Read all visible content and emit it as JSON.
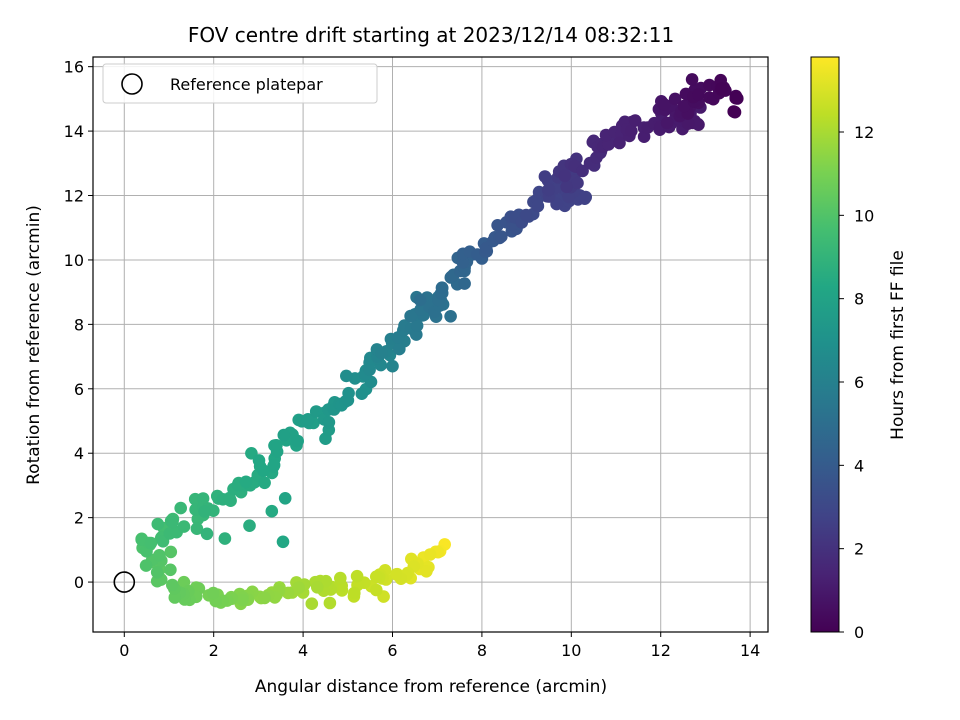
{
  "chart_data": {
    "type": "scatter",
    "title": "FOV centre drift starting at 2023/12/14 08:32:11",
    "xlabel": "Angular distance from reference (arcmin)",
    "ylabel": "Rotation from reference (arcmin)",
    "xlim": [
      -0.7,
      14.4
    ],
    "ylim": [
      -1.55,
      16.3
    ],
    "xticks": [
      0,
      2,
      4,
      6,
      8,
      10,
      12,
      14
    ],
    "yticks": [
      0,
      2,
      4,
      6,
      8,
      10,
      12,
      14,
      16
    ],
    "grid": true,
    "legend": {
      "placement": "top-left",
      "entries": [
        "Reference platepar"
      ]
    },
    "reference_point": {
      "x": 0,
      "y": 0,
      "label": "Reference platepar"
    },
    "colorbar": {
      "label": "Hours from first FF file",
      "colormap": "viridis",
      "range": [
        0,
        13.8
      ],
      "ticks": [
        0,
        2,
        4,
        6,
        8,
        10,
        12
      ]
    },
    "series": [
      {
        "columns": [
          "x",
          "y",
          "hours"
        ],
        "points": [
          [
            13.7,
            14.75,
            0.0
          ],
          [
            13.6,
            15.3,
            0.1
          ],
          [
            13.4,
            15.35,
            0.2
          ],
          [
            13.0,
            15.2,
            0.3
          ],
          [
            12.7,
            15.15,
            0.4
          ],
          [
            12.85,
            14.85,
            0.5
          ],
          [
            12.6,
            14.9,
            0.6
          ],
          [
            12.4,
            14.7,
            0.7
          ],
          [
            12.1,
            14.85,
            0.8
          ],
          [
            12.3,
            14.5,
            0.9
          ],
          [
            12.9,
            14.4,
            1.0
          ],
          [
            11.8,
            14.25,
            1.1
          ],
          [
            11.6,
            14.1,
            1.2
          ],
          [
            11.3,
            14.2,
            1.3
          ],
          [
            11.0,
            13.9,
            1.4
          ],
          [
            10.75,
            13.75,
            1.5
          ],
          [
            10.55,
            13.55,
            1.6
          ],
          [
            10.5,
            13.25,
            1.7
          ],
          [
            10.3,
            13.05,
            1.85
          ],
          [
            10.0,
            13.05,
            2.0
          ],
          [
            9.9,
            12.85,
            2.15
          ],
          [
            10.1,
            12.55,
            2.3
          ],
          [
            9.75,
            12.4,
            2.45
          ],
          [
            9.5,
            12.25,
            2.6
          ],
          [
            10.2,
            11.9,
            2.7
          ],
          [
            9.4,
            11.95,
            2.8
          ],
          [
            9.2,
            11.75,
            2.95
          ],
          [
            9.0,
            11.55,
            3.1
          ],
          [
            8.9,
            11.3,
            3.25
          ],
          [
            8.75,
            11.15,
            3.4
          ],
          [
            8.6,
            11.0,
            3.55
          ],
          [
            8.45,
            10.85,
            3.7
          ],
          [
            8.3,
            10.6,
            3.85
          ],
          [
            8.1,
            10.35,
            4.0
          ],
          [
            7.95,
            10.15,
            4.15
          ],
          [
            7.8,
            10.0,
            4.3
          ],
          [
            7.6,
            9.85,
            4.45
          ],
          [
            7.45,
            9.55,
            4.6
          ],
          [
            7.3,
            9.3,
            4.75
          ],
          [
            7.1,
            9.1,
            4.9
          ],
          [
            7.0,
            8.85,
            5.05
          ],
          [
            7.0,
            8.3,
            5.15
          ],
          [
            6.8,
            8.65,
            5.25
          ],
          [
            6.6,
            8.35,
            5.4
          ],
          [
            6.45,
            8.1,
            5.55
          ],
          [
            6.3,
            7.9,
            5.7
          ],
          [
            6.15,
            7.6,
            5.85
          ],
          [
            6.0,
            7.35,
            6.0
          ],
          [
            5.85,
            7.1,
            6.15
          ],
          [
            5.7,
            6.95,
            6.3
          ],
          [
            5.5,
            6.75,
            6.45
          ],
          [
            5.35,
            6.5,
            6.6
          ],
          [
            5.2,
            6.25,
            6.75
          ],
          [
            5.1,
            6.0,
            6.9
          ],
          [
            4.95,
            5.75,
            7.05
          ],
          [
            4.8,
            5.5,
            7.2
          ],
          [
            4.6,
            5.3,
            7.35
          ],
          [
            4.4,
            5.1,
            7.5
          ],
          [
            4.2,
            4.9,
            7.65
          ],
          [
            4.0,
            4.7,
            7.8
          ],
          [
            3.8,
            4.45,
            7.95
          ],
          [
            3.6,
            4.25,
            8.05
          ],
          [
            3.45,
            4.0,
            8.15
          ],
          [
            3.3,
            3.75,
            8.25
          ],
          [
            3.1,
            3.55,
            8.35
          ],
          [
            2.9,
            3.35,
            8.45
          ],
          [
            2.75,
            3.1,
            8.55
          ],
          [
            2.6,
            2.9,
            8.65
          ],
          [
            2.4,
            2.7,
            8.75
          ],
          [
            2.2,
            2.55,
            8.85
          ],
          [
            2.0,
            2.4,
            8.95
          ],
          [
            1.8,
            2.25,
            9.05
          ],
          [
            1.6,
            2.1,
            9.15
          ],
          [
            1.4,
            1.95,
            9.25
          ],
          [
            1.2,
            1.8,
            9.35
          ],
          [
            1.0,
            1.65,
            9.45
          ],
          [
            0.85,
            1.5,
            9.55
          ],
          [
            0.7,
            1.35,
            9.65
          ],
          [
            0.5,
            1.2,
            9.75
          ],
          [
            0.35,
            1.05,
            9.85
          ],
          [
            0.5,
            0.85,
            9.95
          ],
          [
            0.65,
            0.65,
            10.05
          ],
          [
            0.8,
            0.45,
            10.15
          ],
          [
            0.9,
            0.2,
            10.25
          ],
          [
            1.0,
            0.0,
            10.35
          ],
          [
            1.1,
            -0.15,
            10.45
          ],
          [
            1.3,
            -0.25,
            10.55
          ],
          [
            1.5,
            -0.3,
            10.65
          ],
          [
            1.7,
            -0.35,
            10.75
          ],
          [
            1.9,
            -0.4,
            10.85
          ],
          [
            2.1,
            -0.45,
            10.95
          ],
          [
            2.3,
            -0.5,
            11.05
          ],
          [
            2.5,
            -0.55,
            11.15
          ],
          [
            2.7,
            -0.55,
            11.25
          ],
          [
            2.9,
            -0.5,
            11.35
          ],
          [
            3.1,
            -0.45,
            11.45
          ],
          [
            3.3,
            -0.4,
            11.55
          ],
          [
            3.5,
            -0.35,
            11.65
          ],
          [
            3.7,
            -0.3,
            11.75
          ],
          [
            3.9,
            -0.2,
            11.85
          ],
          [
            4.1,
            -0.15,
            11.95
          ],
          [
            4.3,
            -0.1,
            12.05
          ],
          [
            4.5,
            -0.05,
            12.15
          ],
          [
            4.7,
            -0.1,
            12.25
          ],
          [
            4.9,
            -0.15,
            12.35
          ],
          [
            5.1,
            -0.1,
            12.45
          ],
          [
            5.3,
            -0.05,
            12.55
          ],
          [
            5.5,
            0.05,
            12.65
          ],
          [
            5.7,
            0.15,
            12.75
          ],
          [
            5.9,
            0.25,
            12.85
          ],
          [
            6.1,
            0.35,
            12.95
          ],
          [
            6.3,
            0.4,
            13.05
          ],
          [
            6.5,
            0.45,
            13.15
          ],
          [
            6.7,
            0.55,
            13.25
          ],
          [
            6.85,
            0.75,
            13.4
          ],
          [
            6.95,
            0.95,
            13.55
          ],
          [
            7.05,
            1.1,
            13.7
          ],
          [
            7.1,
            1.15,
            13.8
          ]
        ],
        "outliers": [
          [
            10.3,
            11.9,
            2.7
          ],
          [
            11.3,
            13.85,
            1.3
          ],
          [
            7.3,
            8.25,
            5.1
          ],
          [
            6.0,
            6.7,
            6.2
          ],
          [
            4.5,
            4.45,
            7.6
          ],
          [
            3.6,
            2.6,
            8.1
          ],
          [
            3.55,
            1.25,
            8.3
          ],
          [
            3.3,
            2.2,
            8.4
          ],
          [
            2.8,
            1.75,
            8.6
          ],
          [
            2.25,
            1.35,
            8.8
          ],
          [
            1.85,
            1.5,
            9.0
          ],
          [
            0.75,
            1.8,
            9.4
          ],
          [
            4.6,
            -0.65,
            12.2
          ],
          [
            5.8,
            -0.45,
            12.8
          ]
        ]
      }
    ]
  }
}
